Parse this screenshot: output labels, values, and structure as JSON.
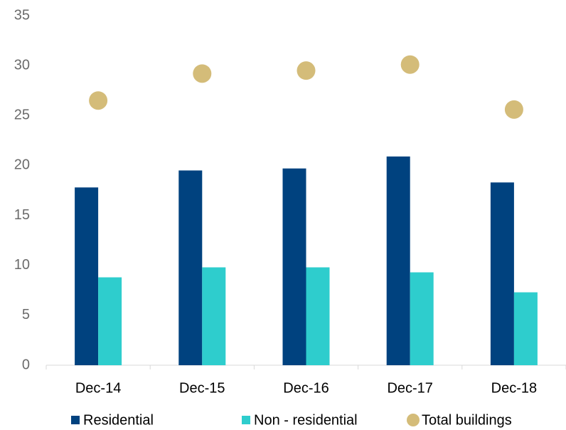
{
  "chart_data": {
    "type": "bar",
    "categories": [
      "Dec-14",
      "Dec-15",
      "Dec-16",
      "Dec-17",
      "Dec-18"
    ],
    "series": [
      {
        "name": "Residential",
        "color": "#00427f",
        "values": [
          17.8,
          19.5,
          19.7,
          20.9,
          18.3
        ]
      },
      {
        "name": "Non - residential",
        "color": "#2ecdcd",
        "values": [
          8.8,
          9.8,
          9.8,
          9.3,
          7.3
        ]
      },
      {
        "name": "Total buildings",
        "color": "#d4bc79",
        "type": "scatter",
        "values": [
          26.5,
          29.2,
          29.5,
          30.1,
          25.6
        ]
      }
    ],
    "ylim": [
      0,
      35
    ],
    "yticks": [
      0,
      5,
      10,
      15,
      20,
      25,
      30,
      35
    ],
    "grid": false
  }
}
